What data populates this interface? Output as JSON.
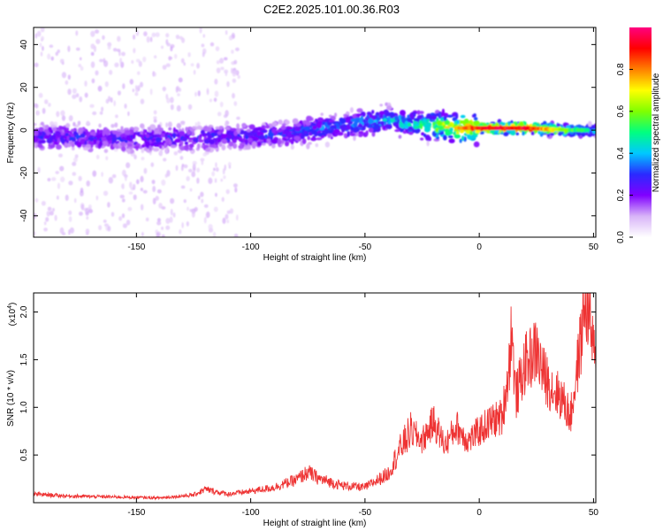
{
  "figure": {
    "title": "C2E2.2025.101.00.36.R03"
  },
  "chart_data": [
    {
      "type": "heatmap",
      "xlabel": "Height of straight line (km)",
      "ylabel": "Frequency (Hz)",
      "xlim": [
        -195,
        51
      ],
      "ylim": [
        -50,
        48
      ],
      "xticks": [
        -150,
        -100,
        -50,
        0,
        50
      ],
      "yticks": [
        -40,
        -20,
        0,
        20,
        40
      ],
      "colorbar": {
        "label": "Normalized spectral amplitude",
        "range": [
          0,
          1
        ],
        "ticks": [
          0.0,
          0.2,
          0.4,
          0.6,
          0.8
        ],
        "colormap": [
          "#ffffff",
          "#d8b4f8",
          "#8000ff",
          "#2a2aff",
          "#00c8ff",
          "#00ff80",
          "#80ff00",
          "#ffff00",
          "#ff8000",
          "#ff0000",
          "#ff0080"
        ]
      },
      "ridge": {
        "x": [
          -195,
          -150,
          -100,
          -80,
          -60,
          -40,
          -30,
          -20,
          -10,
          0,
          20,
          40,
          50
        ],
        "center_hz": [
          -3,
          -4,
          -3,
          -1,
          2,
          5,
          3,
          2,
          1,
          1,
          1,
          0,
          0
        ],
        "amplitude": [
          0.3,
          0.3,
          0.3,
          0.35,
          0.4,
          0.45,
          0.5,
          0.65,
          0.85,
          0.95,
          1.0,
          0.6,
          0.5
        ]
      },
      "grid": false
    },
    {
      "type": "line",
      "xlabel": "Height of straight line (km)",
      "ylabel": "SNR (10 * v/v)",
      "scale_label": "(x10",
      "scale_exp": "4",
      "scale_suffix": ")",
      "xlim": [
        -195,
        51
      ],
      "ylim": [
        0,
        22000
      ],
      "xticks": [
        -150,
        -100,
        -50,
        0,
        50
      ],
      "yticks": [
        5000,
        10000,
        15000,
        20000
      ],
      "ytick_labels": [
        "0.5",
        "1.0",
        "1.5",
        "2.0"
      ],
      "series": [
        {
          "color": "#ee3333",
          "x": [
            -195,
            -180,
            -160,
            -140,
            -125,
            -120,
            -110,
            -100,
            -90,
            -80,
            -75,
            -70,
            -60,
            -50,
            -40,
            -35,
            -30,
            -25,
            -20,
            -15,
            -10,
            -5,
            0,
            5,
            10,
            13,
            14,
            16,
            20,
            25,
            28,
            32,
            36,
            40,
            42,
            45,
            46,
            48,
            50,
            51
          ],
          "values": [
            900,
            700,
            600,
            500,
            800,
            1400,
            900,
            1200,
            1600,
            2400,
            3200,
            2500,
            1800,
            1600,
            3000,
            5500,
            7500,
            6500,
            8500,
            6000,
            8000,
            6500,
            7500,
            8500,
            9000,
            14000,
            18500,
            11000,
            14500,
            16000,
            13500,
            12000,
            11000,
            9000,
            12500,
            18000,
            21500,
            20000,
            16000,
            13500
          ]
        }
      ],
      "grid": false
    }
  ]
}
